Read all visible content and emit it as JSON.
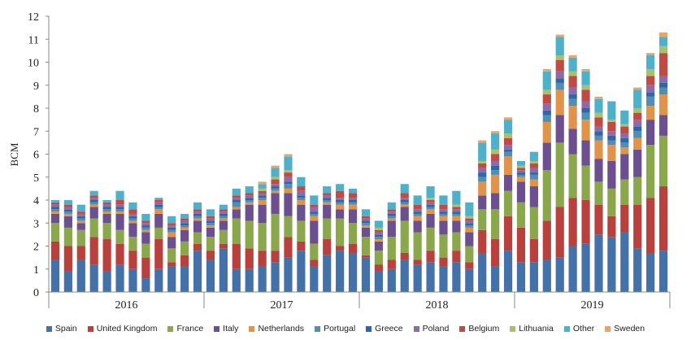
{
  "chart_data": {
    "type": "bar",
    "stacked": true,
    "title": "",
    "xlabel": "",
    "ylabel": "BCM",
    "ylim": [
      0,
      12
    ],
    "yticks": [
      "0",
      "1",
      "2",
      "3",
      "4",
      "5",
      "6",
      "7",
      "8",
      "9",
      "10",
      "11",
      "12"
    ],
    "grid": false,
    "legend_position": "bottom",
    "years": [
      "2016",
      "2017",
      "2018",
      "2019"
    ],
    "categories": [
      "2016-01",
      "2016-02",
      "2016-03",
      "2016-04",
      "2016-05",
      "2016-06",
      "2016-07",
      "2016-08",
      "2016-09",
      "2016-10",
      "2016-11",
      "2016-12",
      "2017-01",
      "2017-02",
      "2017-03",
      "2017-04",
      "2017-05",
      "2017-06",
      "2017-07",
      "2017-08",
      "2017-09",
      "2017-10",
      "2017-11",
      "2017-12",
      "2018-01",
      "2018-02",
      "2018-03",
      "2018-04",
      "2018-05",
      "2018-06",
      "2018-07",
      "2018-08",
      "2018-09",
      "2018-10",
      "2018-11",
      "2018-12",
      "2019-01",
      "2019-02",
      "2019-03",
      "2019-04",
      "2019-05",
      "2019-06",
      "2019-07",
      "2019-08",
      "2019-09",
      "2019-10",
      "2019-11",
      "2019-12"
    ],
    "series": [
      {
        "name": "Spain",
        "color": "#4472a8",
        "values": [
          1.4,
          0.9,
          1.4,
          1.2,
          0.9,
          1.2,
          1.0,
          0.6,
          1.0,
          1.1,
          1.1,
          1.8,
          1.4,
          1.9,
          1.0,
          1.0,
          1.1,
          1.3,
          1.5,
          1.8,
          1.1,
          1.6,
          1.8,
          1.7,
          1.5,
          0.9,
          1.0,
          1.4,
          1.2,
          1.3,
          1.1,
          1.3,
          1.0,
          1.7,
          1.1,
          1.8,
          1.3,
          1.3,
          1.4,
          1.5,
          2.0,
          2.1,
          2.5,
          2.4,
          2.6,
          1.9,
          1.7,
          1.8
        ]
      },
      {
        "name": "United Kingdom",
        "color": "#b8413d",
        "values": [
          0.8,
          1.1,
          0.6,
          1.2,
          1.4,
          0.9,
          0.8,
          0.9,
          1.3,
          0.2,
          0.5,
          0.3,
          0.4,
          0.2,
          1.1,
          0.9,
          0.7,
          0.5,
          0.9,
          0.4,
          0.3,
          0.7,
          0.2,
          0.4,
          0.1,
          0.3,
          0.4,
          0.3,
          0.2,
          0.5,
          0.4,
          0.5,
          0.3,
          1.0,
          1.2,
          1.5,
          1.5,
          1.0,
          1.7,
          2.2,
          2.1,
          1.9,
          1.3,
          0.9,
          1.2,
          1.9,
          2.4,
          2.8
        ]
      },
      {
        "name": "France",
        "color": "#8ba74b",
        "values": [
          0.8,
          0.8,
          0.7,
          0.8,
          0.7,
          0.6,
          0.6,
          0.6,
          0.5,
          0.6,
          0.6,
          0.5,
          0.6,
          0.6,
          1.1,
          1.2,
          1.2,
          1.6,
          0.9,
          0.9,
          0.7,
          0.9,
          1.2,
          0.9,
          0.8,
          0.6,
          1.0,
          1.4,
          1.2,
          1.0,
          1.0,
          0.8,
          0.7,
          0.9,
          1.3,
          1.1,
          1.1,
          1.4,
          2.2,
          2.8,
          1.9,
          1.5,
          1.0,
          1.2,
          1.1,
          1.2,
          2.3,
          2.2
        ]
      },
      {
        "name": "Italy",
        "color": "#6b4f8e",
        "values": [
          0.4,
          0.5,
          0.3,
          0.5,
          0.4,
          0.7,
          0.6,
          0.5,
          0.6,
          0.5,
          0.5,
          0.5,
          0.4,
          0.4,
          0.4,
          0.7,
          0.8,
          0.9,
          1.0,
          0.7,
          1.0,
          0.6,
          0.4,
          0.6,
          0.4,
          0.4,
          0.7,
          0.6,
          0.5,
          0.6,
          0.6,
          0.5,
          0.6,
          0.6,
          0.7,
          0.7,
          0.9,
          0.9,
          1.2,
          1.2,
          1.1,
          1.1,
          1.0,
          1.2,
          1.1,
          1.2,
          1.1,
          0.9
        ]
      },
      {
        "name": "Netherlands",
        "color": "#e0944a",
        "values": [
          0.1,
          0.1,
          0.1,
          0.1,
          0.1,
          0.1,
          0.1,
          0.1,
          0.2,
          0.2,
          0.1,
          0.1,
          0.1,
          0.1,
          0.1,
          0.1,
          0.2,
          0.1,
          0.2,
          0.2,
          0.2,
          0.1,
          0.2,
          0.2,
          0.1,
          0.1,
          0.1,
          0.1,
          0.2,
          0.2,
          0.2,
          0.2,
          0.2,
          0.6,
          0.8,
          0.8,
          0.2,
          0.3,
          0.9,
          1.1,
          1.0,
          0.9,
          0.8,
          0.7,
          0.3,
          0.5,
          0.6,
          0.9
        ]
      },
      {
        "name": "Portugal",
        "color": "#4f8fb3",
        "values": [
          0.1,
          0.1,
          0.1,
          0.1,
          0.1,
          0.1,
          0.1,
          0.1,
          0.1,
          0.1,
          0.1,
          0.1,
          0.1,
          0.1,
          0.2,
          0.1,
          0.1,
          0.1,
          0.2,
          0.1,
          0.1,
          0.1,
          0.1,
          0.1,
          0.1,
          0.1,
          0.1,
          0.1,
          0.1,
          0.1,
          0.1,
          0.1,
          0.1,
          0.2,
          0.2,
          0.2,
          0.1,
          0.2,
          0.3,
          0.3,
          0.3,
          0.3,
          0.2,
          0.2,
          0.2,
          0.3,
          0.4,
          0.3
        ]
      },
      {
        "name": "Greece",
        "color": "#2f66a6",
        "values": [
          0.1,
          0.1,
          0.1,
          0.1,
          0.1,
          0.1,
          0.1,
          0.1,
          0.1,
          0.1,
          0.1,
          0.1,
          0.1,
          0.1,
          0.1,
          0.1,
          0.1,
          0.1,
          0.1,
          0.1,
          0.1,
          0.1,
          0.1,
          0.1,
          0.1,
          0.1,
          0.1,
          0.1,
          0.1,
          0.1,
          0.1,
          0.1,
          0.1,
          0.2,
          0.2,
          0.1,
          0.1,
          0.1,
          0.2,
          0.2,
          0.2,
          0.2,
          0.2,
          0.2,
          0.2,
          0.2,
          0.2,
          0.2
        ]
      },
      {
        "name": "Poland",
        "color": "#8e6aa8",
        "values": [
          0.1,
          0.1,
          0.1,
          0.1,
          0.1,
          0.1,
          0.1,
          0.1,
          0.1,
          0.1,
          0.1,
          0.1,
          0.1,
          0.1,
          0.1,
          0.1,
          0.1,
          0.1,
          0.2,
          0.2,
          0.2,
          0.1,
          0.1,
          0.1,
          0.1,
          0.1,
          0.1,
          0.1,
          0.1,
          0.1,
          0.1,
          0.1,
          0.1,
          0.2,
          0.2,
          0.2,
          0.1,
          0.2,
          0.3,
          0.3,
          0.3,
          0.3,
          0.2,
          0.2,
          0.2,
          0.3,
          0.3,
          0.3
        ]
      },
      {
        "name": "Belgium",
        "color": "#c24a45",
        "values": [
          0.1,
          0.1,
          0.1,
          0.1,
          0.1,
          0.2,
          0.2,
          0.1,
          0.1,
          0.1,
          0.1,
          0.1,
          0.1,
          0.1,
          0.1,
          0.1,
          0.1,
          0.2,
          0.2,
          0.2,
          0.1,
          0.1,
          0.3,
          0.2,
          0.1,
          0.1,
          0.1,
          0.2,
          0.2,
          0.1,
          0.2,
          0.1,
          0.1,
          0.2,
          0.3,
          0.3,
          0.1,
          0.2,
          0.4,
          0.5,
          0.5,
          0.5,
          0.4,
          0.4,
          0.3,
          0.3,
          0.4,
          1.0
        ]
      },
      {
        "name": "Lithuania",
        "color": "#a6c26a",
        "values": [
          0.0,
          0.0,
          0.0,
          0.0,
          0.0,
          0.0,
          0.0,
          0.0,
          0.0,
          0.0,
          0.0,
          0.0,
          0.0,
          0.0,
          0.0,
          0.0,
          0.1,
          0.1,
          0.1,
          0.0,
          0.0,
          0.0,
          0.0,
          0.0,
          0.0,
          0.1,
          0.0,
          0.0,
          0.0,
          0.1,
          0.0,
          0.1,
          0.1,
          0.1,
          0.2,
          0.2,
          0.1,
          0.1,
          0.2,
          0.2,
          0.2,
          0.2,
          0.2,
          0.1,
          0.1,
          0.2,
          0.3,
          0.3
        ]
      },
      {
        "name": "Other",
        "color": "#4fb0c9",
        "values": [
          0.1,
          0.2,
          0.3,
          0.2,
          0.1,
          0.4,
          0.3,
          0.3,
          0.1,
          0.3,
          0.2,
          0.3,
          0.3,
          0.2,
          0.3,
          0.3,
          0.2,
          0.4,
          0.6,
          0.4,
          0.4,
          0.3,
          0.3,
          0.2,
          0.3,
          0.3,
          0.3,
          0.4,
          0.4,
          0.5,
          0.4,
          0.6,
          0.6,
          0.8,
          0.7,
          0.6,
          0.2,
          0.4,
          0.8,
          0.8,
          0.6,
          0.6,
          0.6,
          0.8,
          0.6,
          0.8,
          0.6,
          0.4
        ]
      },
      {
        "name": "Sweden",
        "color": "#e8a56a",
        "values": [
          0.0,
          0.0,
          0.0,
          0.0,
          0.0,
          0.0,
          0.0,
          0.0,
          0.0,
          0.0,
          0.0,
          0.0,
          0.0,
          0.0,
          0.0,
          0.0,
          0.1,
          0.1,
          0.1,
          0.0,
          0.0,
          0.0,
          0.0,
          0.0,
          0.0,
          0.0,
          0.0,
          0.0,
          0.0,
          0.0,
          0.0,
          0.0,
          0.0,
          0.1,
          0.1,
          0.1,
          0.0,
          0.0,
          0.1,
          0.1,
          0.1,
          0.1,
          0.1,
          0.0,
          0.0,
          0.1,
          0.1,
          0.2
        ]
      }
    ]
  }
}
